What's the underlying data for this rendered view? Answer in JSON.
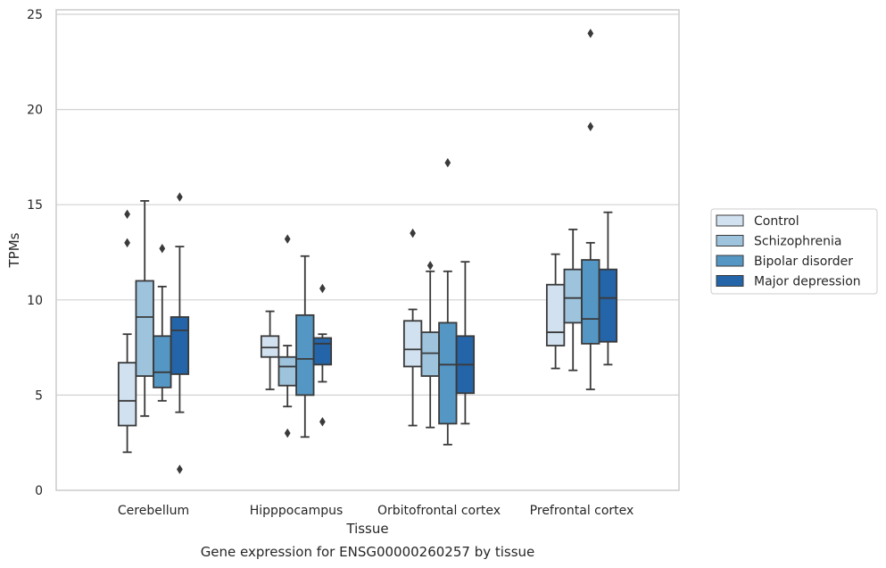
{
  "chart_data": {
    "type": "box",
    "title": "Gene expression for ENSG00000260257 by tissue",
    "xlabel": "Tissue",
    "ylabel": "TPMs",
    "ylim": [
      0,
      25.3
    ],
    "yticks": [
      0,
      5,
      10,
      15,
      20,
      25
    ],
    "grid": "horizontal",
    "legend_position": "right",
    "categories": [
      "Cerebellum",
      "Hipppocampus",
      "Orbitofrontal cortex",
      "Prefrontal cortex"
    ],
    "series": [
      {
        "name": "Control",
        "color": "#d1e1f0",
        "boxes": [
          {
            "whislo": 2.0,
            "q1": 3.4,
            "med": 4.7,
            "q3": 6.7,
            "whishi": 8.2,
            "fliers": [
              13.0,
              14.5
            ]
          },
          {
            "whislo": 5.3,
            "q1": 7.0,
            "med": 7.5,
            "q3": 8.1,
            "whishi": 9.4,
            "fliers": []
          },
          {
            "whislo": 3.4,
            "q1": 6.5,
            "med": 7.4,
            "q3": 8.9,
            "whishi": 9.5,
            "fliers": [
              13.5
            ]
          },
          {
            "whislo": 6.4,
            "q1": 7.6,
            "med": 8.3,
            "q3": 10.8,
            "whishi": 12.4,
            "fliers": []
          }
        ]
      },
      {
        "name": "Schizophrenia",
        "color": "#9dc3dd",
        "boxes": [
          {
            "whislo": 3.9,
            "q1": 6.0,
            "med": 9.1,
            "q3": 11.0,
            "whishi": 15.2,
            "fliers": []
          },
          {
            "whislo": 4.4,
            "q1": 5.5,
            "med": 6.5,
            "q3": 7.0,
            "whishi": 7.6,
            "fliers": [
              3.0,
              13.2
            ]
          },
          {
            "whislo": 3.3,
            "q1": 6.0,
            "med": 7.2,
            "q3": 8.3,
            "whishi": 11.5,
            "fliers": [
              11.8
            ]
          },
          {
            "whislo": 6.3,
            "q1": 8.8,
            "med": 10.1,
            "q3": 11.6,
            "whishi": 13.7,
            "fliers": []
          }
        ]
      },
      {
        "name": "Bipolar disorder",
        "color": "#5597c4",
        "boxes": [
          {
            "whislo": 4.7,
            "q1": 5.4,
            "med": 6.2,
            "q3": 8.1,
            "whishi": 10.7,
            "fliers": [
              12.7
            ]
          },
          {
            "whislo": 2.8,
            "q1": 5.0,
            "med": 6.9,
            "q3": 9.2,
            "whishi": 12.3,
            "fliers": []
          },
          {
            "whislo": 2.4,
            "q1": 3.5,
            "med": 6.6,
            "q3": 8.8,
            "whishi": 11.5,
            "fliers": [
              17.2
            ]
          },
          {
            "whislo": 5.3,
            "q1": 7.7,
            "med": 9.0,
            "q3": 12.1,
            "whishi": 13.0,
            "fliers": [
              19.1,
              24.0
            ]
          }
        ]
      },
      {
        "name": "Major depression",
        "color": "#2464a9",
        "boxes": [
          {
            "whislo": 4.1,
            "q1": 6.1,
            "med": 8.4,
            "q3": 9.1,
            "whishi": 12.8,
            "fliers": [
              1.1,
              15.4
            ]
          },
          {
            "whislo": 5.7,
            "q1": 6.6,
            "med": 7.7,
            "q3": 8.0,
            "whishi": 8.2,
            "fliers": [
              3.6,
              10.6
            ]
          },
          {
            "whislo": 3.5,
            "q1": 5.1,
            "med": 6.6,
            "q3": 8.1,
            "whishi": 12.0,
            "fliers": []
          },
          {
            "whislo": 6.6,
            "q1": 7.8,
            "med": 10.1,
            "q3": 11.6,
            "whishi": 14.6,
            "fliers": []
          }
        ]
      }
    ]
  }
}
